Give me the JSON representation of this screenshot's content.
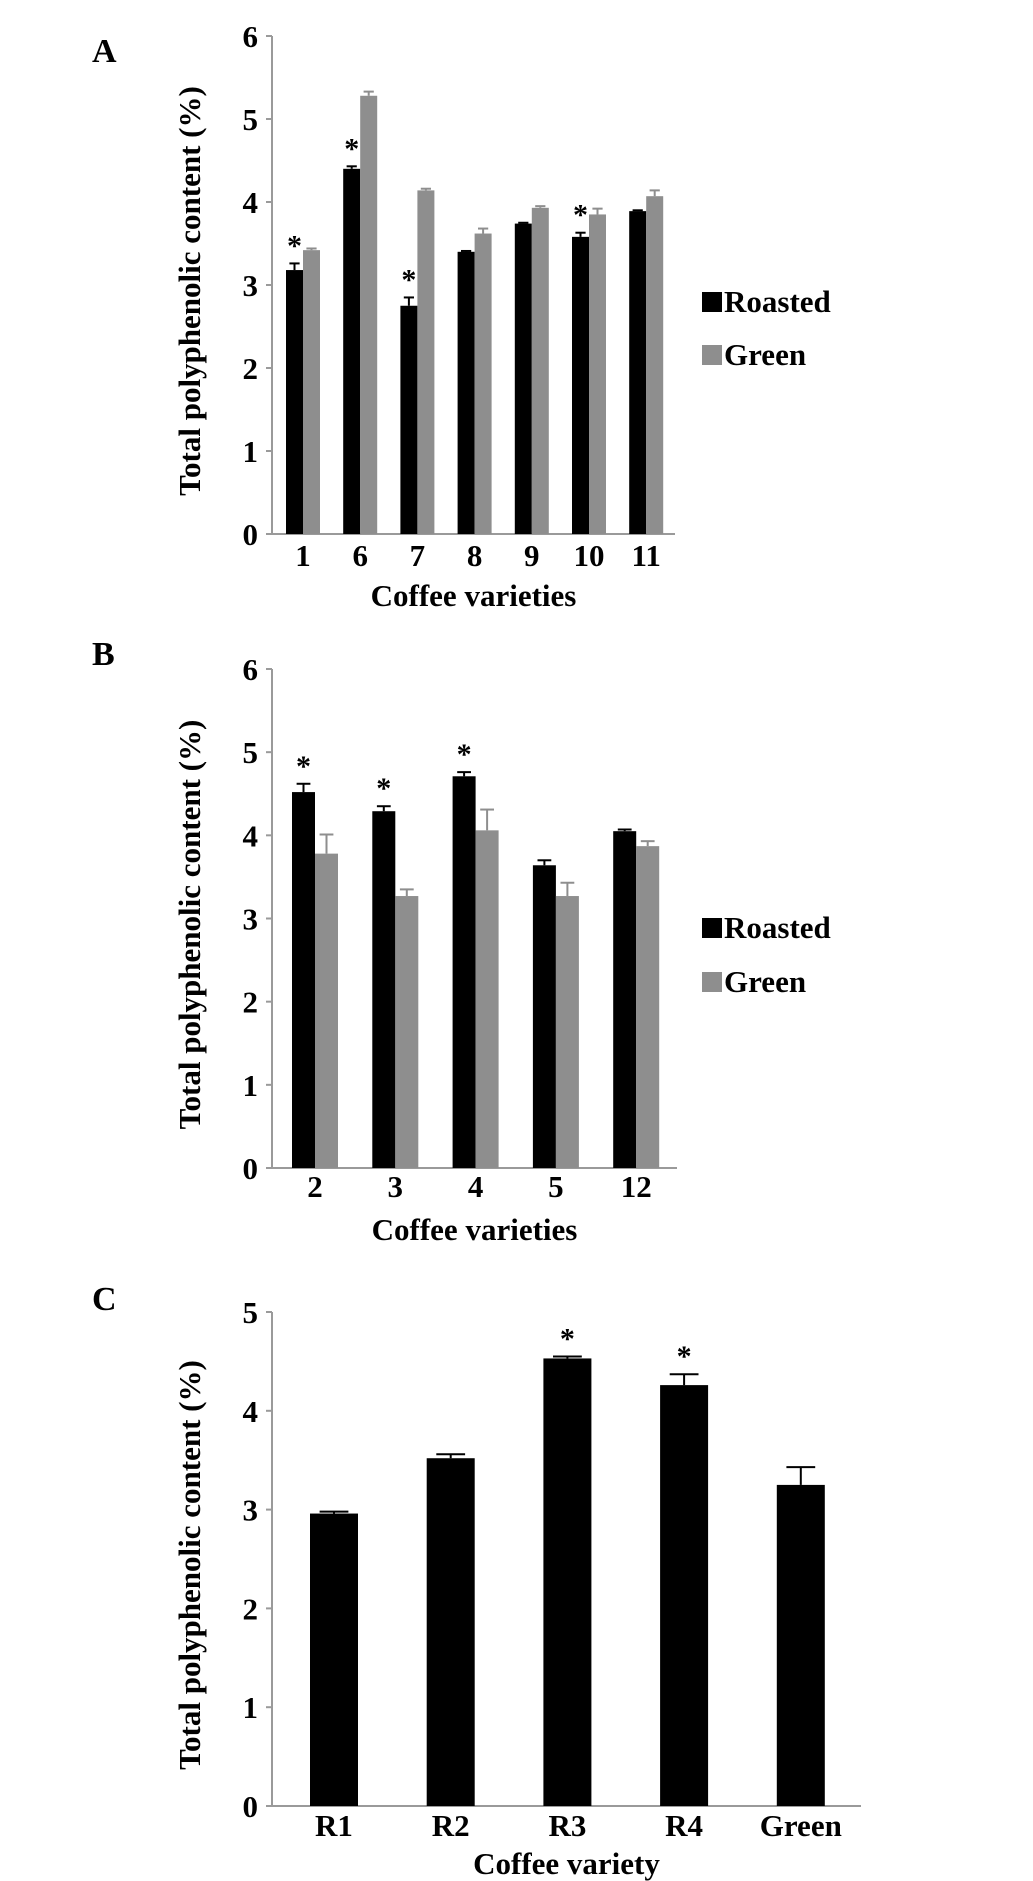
{
  "colors": {
    "roasted": "#000000",
    "green": "#8e8e8e",
    "axis": "#9a9a9a"
  },
  "chart_data": [
    {
      "panel": "A",
      "type": "bar",
      "title": "",
      "xlabel": "Coffee varieties",
      "ylabel": "Total polyphenolic content (%)",
      "ylim": [
        0,
        6
      ],
      "yticks": [
        "0",
        "1",
        "2",
        "3",
        "4",
        "5",
        "6"
      ],
      "categories": [
        "1",
        "6",
        "7",
        "8",
        "9",
        "10",
        "11"
      ],
      "legend": {
        "position": "right",
        "entries": [
          "Roasted",
          "Green"
        ]
      },
      "series": [
        {
          "name": "Roasted",
          "values": [
            3.18,
            4.4,
            2.75,
            3.4,
            3.74,
            3.58,
            3.89
          ],
          "errors": [
            0.08,
            0.03,
            0.1,
            0.01,
            0.01,
            0.05,
            0.01
          ]
        },
        {
          "name": "Green",
          "values": [
            3.42,
            5.28,
            4.14,
            3.62,
            3.93,
            3.85,
            4.07
          ],
          "errors": [
            0.02,
            0.05,
            0.02,
            0.06,
            0.02,
            0.07,
            0.07
          ]
        }
      ],
      "significance": {
        "symbol": "*",
        "categories": [
          "1",
          "6",
          "7",
          "10"
        ]
      }
    },
    {
      "panel": "B",
      "type": "bar",
      "title": "",
      "xlabel": "Coffee varieties",
      "ylabel": "Total polyphenolic content (%)",
      "ylim": [
        0,
        6
      ],
      "yticks": [
        "0",
        "1",
        "2",
        "3",
        "4",
        "5",
        "6"
      ],
      "categories": [
        "2",
        "3",
        "4",
        "5",
        "12"
      ],
      "legend": {
        "position": "right",
        "entries": [
          "Roasted",
          "Green"
        ]
      },
      "series": [
        {
          "name": "Roasted",
          "values": [
            4.52,
            4.29,
            4.71,
            3.64,
            4.05
          ],
          "errors": [
            0.1,
            0.06,
            0.05,
            0.06,
            0.02
          ]
        },
        {
          "name": "Green",
          "values": [
            3.78,
            3.27,
            4.06,
            3.27,
            3.87
          ],
          "errors": [
            0.23,
            0.08,
            0.25,
            0.16,
            0.06
          ]
        }
      ],
      "significance": {
        "symbol": "*",
        "categories": [
          "2",
          "3",
          "4"
        ]
      }
    },
    {
      "panel": "C",
      "type": "bar",
      "title": "",
      "xlabel": "Coffee variety",
      "ylabel": "Total polyphenolic content (%)",
      "ylim": [
        0,
        5
      ],
      "yticks": [
        "0",
        "1",
        "2",
        "3",
        "4",
        "5"
      ],
      "categories": [
        "R1",
        "R2",
        "R3",
        "R4",
        "Green"
      ],
      "series": [
        {
          "name": "Total polyphenolic content",
          "values": [
            2.96,
            3.52,
            4.53,
            4.26,
            3.25
          ],
          "errors": [
            0.02,
            0.04,
            0.02,
            0.11,
            0.18
          ]
        }
      ],
      "significance": {
        "symbol": "*",
        "categories": [
          "R3",
          "R4"
        ]
      }
    }
  ]
}
